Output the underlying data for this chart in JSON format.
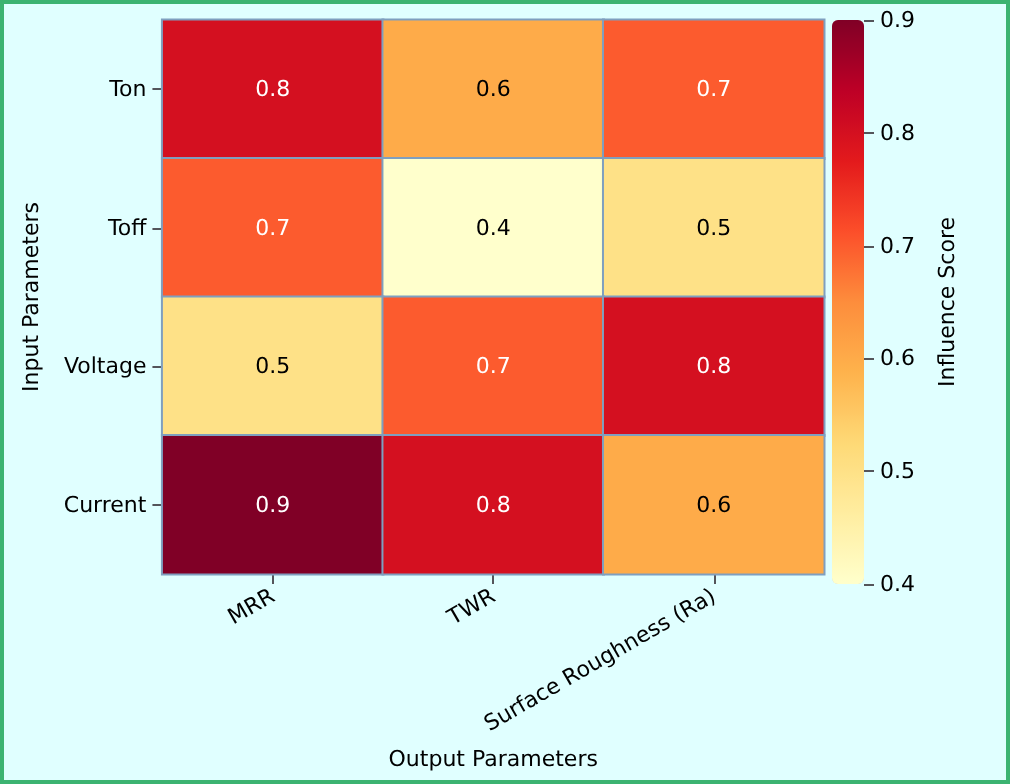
{
  "chart_data": {
    "type": "heatmap",
    "xlabel": "Output Parameters",
    "ylabel": "Input Parameters",
    "clabel": "Influence Score",
    "categories": [
      "MRR",
      "TWR",
      "Surface Roughness (Ra)"
    ],
    "y_categories": [
      "Ton",
      "Toff",
      "Voltage",
      "Current"
    ],
    "cells": [
      [
        0.8,
        0.6,
        0.7
      ],
      [
        0.7,
        0.4,
        0.5
      ],
      [
        0.5,
        0.7,
        0.8
      ],
      [
        0.9,
        0.8,
        0.6
      ]
    ],
    "clim": [
      0.4,
      0.9
    ],
    "cticks": [
      0.4,
      0.5,
      0.6,
      0.7,
      0.8,
      0.9
    ],
    "data_labels": true
  }
}
